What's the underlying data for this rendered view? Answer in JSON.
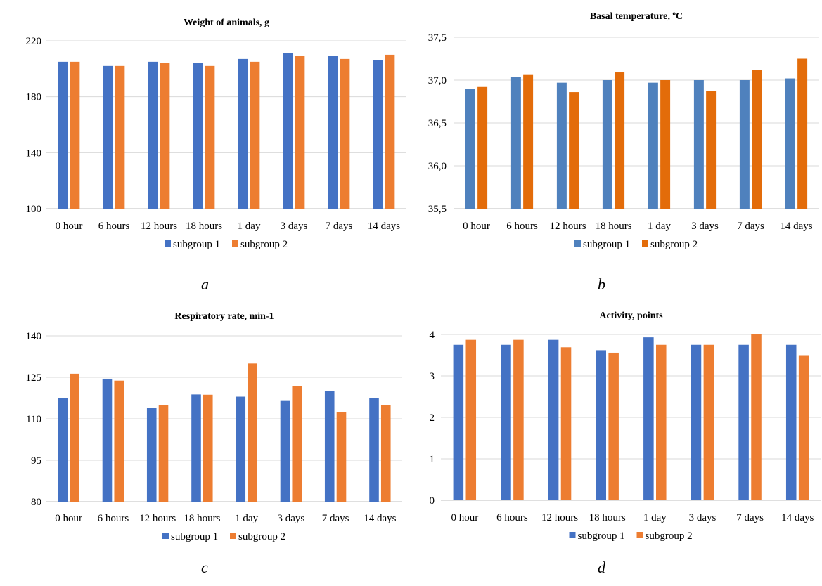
{
  "charts": [
    {
      "id": "a",
      "letter": "a",
      "colors": [
        "#4472C4",
        "#ED7D31"
      ]
    },
    {
      "id": "b",
      "letter": "b",
      "colors": [
        "#4F81BD",
        "#E36C0A"
      ]
    },
    {
      "id": "c",
      "letter": "c",
      "colors": [
        "#4472C4",
        "#ED7D31"
      ]
    },
    {
      "id": "d",
      "letter": "d",
      "colors": [
        "#4472C4",
        "#ED7D31"
      ]
    }
  ],
  "chart_data": [
    {
      "type": "bar",
      "title": "Weight of animals, g",
      "categories": [
        "0 hour",
        "6 hours",
        "12 hours",
        "18 hours",
        "1 day",
        "3 days",
        "7 days",
        "14 days"
      ],
      "series": [
        {
          "name": "subgroup 1",
          "values": [
            205,
            202,
            205,
            204,
            207,
            211,
            209,
            206
          ]
        },
        {
          "name": "subgroup 2",
          "values": [
            205,
            202,
            204,
            202,
            205,
            209,
            207,
            210
          ]
        }
      ],
      "ylim": [
        100,
        220
      ],
      "yticks": [
        "100",
        "140",
        "180",
        "220"
      ],
      "ytick_values": [
        100,
        140,
        180,
        220
      ],
      "grid": true,
      "legend": "bottom"
    },
    {
      "type": "bar",
      "title": "Basal temperature, ºC",
      "categories": [
        "0 hour",
        "6 hours",
        "12 hours",
        "18 hours",
        "1 day",
        "3 days",
        "7 days",
        "14 days"
      ],
      "series": [
        {
          "name": "subgroup 1",
          "values": [
            36.9,
            37.04,
            36.97,
            37.0,
            36.97,
            37.0,
            37.0,
            37.02
          ]
        },
        {
          "name": "subgroup 2",
          "values": [
            36.92,
            37.06,
            36.86,
            37.09,
            37.0,
            36.87,
            37.12,
            37.25
          ]
        }
      ],
      "ylim": [
        35.5,
        37.5
      ],
      "yticks": [
        "35,5",
        "36,0",
        "36,5",
        "37,0",
        "37,5"
      ],
      "ytick_values": [
        35.5,
        36.0,
        36.5,
        37.0,
        37.5
      ],
      "grid": true,
      "legend": "bottom"
    },
    {
      "type": "bar",
      "title": "Respiratory rate, min-1",
      "categories": [
        "0 hour",
        "6 hours",
        "12 hours",
        "18 hours",
        "1 day",
        "3 days",
        "7 days",
        "14 days"
      ],
      "series": [
        {
          "name": "subgroup 1",
          "values": [
            117.5,
            124.5,
            114,
            118.8,
            118,
            116.7,
            120,
            117.5
          ]
        },
        {
          "name": "subgroup 2",
          "values": [
            126.3,
            123.8,
            115,
            118.7,
            130,
            121.7,
            112.5,
            115
          ]
        }
      ],
      "ylim": [
        80,
        140
      ],
      "yticks": [
        "80",
        "95",
        "110",
        "125",
        "140"
      ],
      "ytick_values": [
        80,
        95,
        110,
        125,
        140
      ],
      "grid": true,
      "legend": "bottom"
    },
    {
      "type": "bar",
      "title": "Activity, points",
      "categories": [
        "0 hour",
        "6 hours",
        "12 hours",
        "18 hours",
        "1 day",
        "3 days",
        "7 days",
        "14 days"
      ],
      "series": [
        {
          "name": "subgroup 1",
          "values": [
            3.75,
            3.75,
            3.87,
            3.62,
            3.93,
            3.75,
            3.75,
            3.75
          ]
        },
        {
          "name": "subgroup 2",
          "values": [
            3.87,
            3.87,
            3.69,
            3.56,
            3.75,
            3.75,
            4.0,
            3.5
          ]
        }
      ],
      "ylim": [
        0,
        4
      ],
      "yticks": [
        "0",
        "1",
        "2",
        "3",
        "4"
      ],
      "ytick_values": [
        0,
        1,
        2,
        3,
        4
      ],
      "grid": true,
      "legend": "bottom"
    }
  ]
}
